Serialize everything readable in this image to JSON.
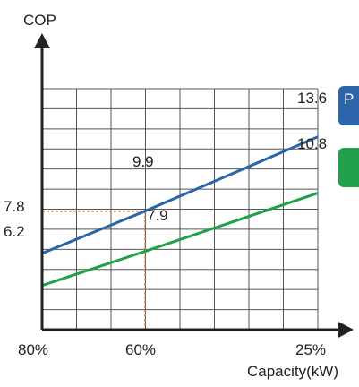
{
  "chart_data": {
    "type": "line",
    "ylabel": "COP",
    "xlabel": "Capacity(kW)",
    "categories": [
      "80%",
      "60%",
      "25%"
    ],
    "x_ticks": [
      "80%",
      "60%",
      "25%"
    ],
    "ylim": [
      4.0,
      16.0
    ],
    "grid": true,
    "series": [
      {
        "name": "",
        "color": "#2c65a8",
        "x": [
          "80%",
          "60%",
          "25%"
        ],
        "values": [
          7.8,
          9.9,
          13.6
        ],
        "point_labels": [
          "7.8",
          "9.9",
          "13.6"
        ]
      },
      {
        "name": "",
        "color": "#22a04b",
        "x": [
          "80%",
          "60%",
          "25%"
        ],
        "values": [
          6.2,
          7.9,
          10.8
        ],
        "point_labels": [
          "6.2",
          "7.9",
          "10.8"
        ]
      }
    ],
    "reference_lines": {
      "x": "60%",
      "y": 9.9,
      "color": "#d9784a",
      "style": "dashed"
    },
    "legend": {
      "placement": "right",
      "items": [
        {
          "color": "#2c65a8",
          "text": "P"
        },
        {
          "color": "#22a04b",
          "text": ""
        }
      ]
    }
  }
}
